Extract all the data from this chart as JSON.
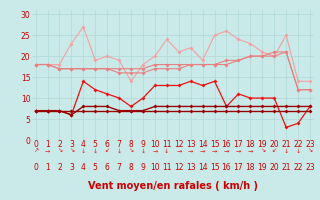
{
  "bg_color": "#caeaea",
  "grid_color": "#b0d8d8",
  "xlabel": "Vent moyen/en rafales ( km/h )",
  "xlabel_color": "#cc0000",
  "xlabel_fontsize": 7,
  "tick_color": "#cc0000",
  "tick_fontsize": 5.5,
  "ylim": [
    0,
    31
  ],
  "yticks": [
    0,
    5,
    10,
    15,
    20,
    25,
    30
  ],
  "xlim": [
    -0.3,
    23.3
  ],
  "x": [
    0,
    1,
    2,
    3,
    4,
    5,
    6,
    7,
    8,
    9,
    10,
    11,
    12,
    13,
    14,
    15,
    16,
    17,
    18,
    19,
    20,
    21,
    22,
    23
  ],
  "series_rafales_1": [
    18,
    18,
    18,
    23,
    27,
    19,
    20,
    19,
    14,
    18,
    20,
    24,
    21,
    22,
    19,
    25,
    26,
    24,
    23,
    21,
    20,
    25,
    14,
    14
  ],
  "series_rafales_2": [
    18,
    18,
    17,
    17,
    17,
    17,
    17,
    17,
    17,
    17,
    18,
    18,
    18,
    18,
    18,
    18,
    18,
    19,
    20,
    20,
    20,
    21,
    12,
    12
  ],
  "series_rafales_3": [
    18,
    18,
    17,
    17,
    17,
    17,
    17,
    16,
    16,
    16,
    17,
    17,
    17,
    18,
    18,
    18,
    19,
    19,
    20,
    20,
    21,
    21,
    12,
    12
  ],
  "series_moyen_1": [
    7,
    7,
    7,
    6,
    14,
    12,
    11,
    10,
    8,
    10,
    13,
    13,
    13,
    14,
    13,
    14,
    8,
    11,
    10,
    10,
    10,
    3,
    4,
    8
  ],
  "series_moyen_2": [
    7,
    7,
    7,
    6,
    8,
    8,
    8,
    7,
    7,
    7,
    8,
    8,
    8,
    8,
    8,
    8,
    8,
    8,
    8,
    8,
    8,
    8,
    8,
    8
  ],
  "series_moyen_3": [
    7,
    7,
    7,
    7,
    7,
    7,
    7,
    7,
    7,
    7,
    7,
    7,
    7,
    7,
    7,
    7,
    7,
    7,
    7,
    7,
    7,
    7,
    7,
    7
  ],
  "color_rafales_light": "#f4a0a0",
  "color_rafales_mid": "#e88080",
  "color_moyen_bright": "#ee1111",
  "color_moyen_dark": "#990000",
  "linewidth_rafales": 0.8,
  "linewidth_moyen": 0.9,
  "markersize": 2.0,
  "arrows": [
    "↗",
    "→",
    "↘",
    "↘",
    "↓",
    "↓",
    "↙",
    "↓",
    "↘",
    "↓",
    "→",
    "↓",
    "→",
    "→",
    "→",
    "→",
    "→",
    "→",
    "→",
    "↘",
    "↙",
    "↓",
    "↓",
    "↘"
  ]
}
